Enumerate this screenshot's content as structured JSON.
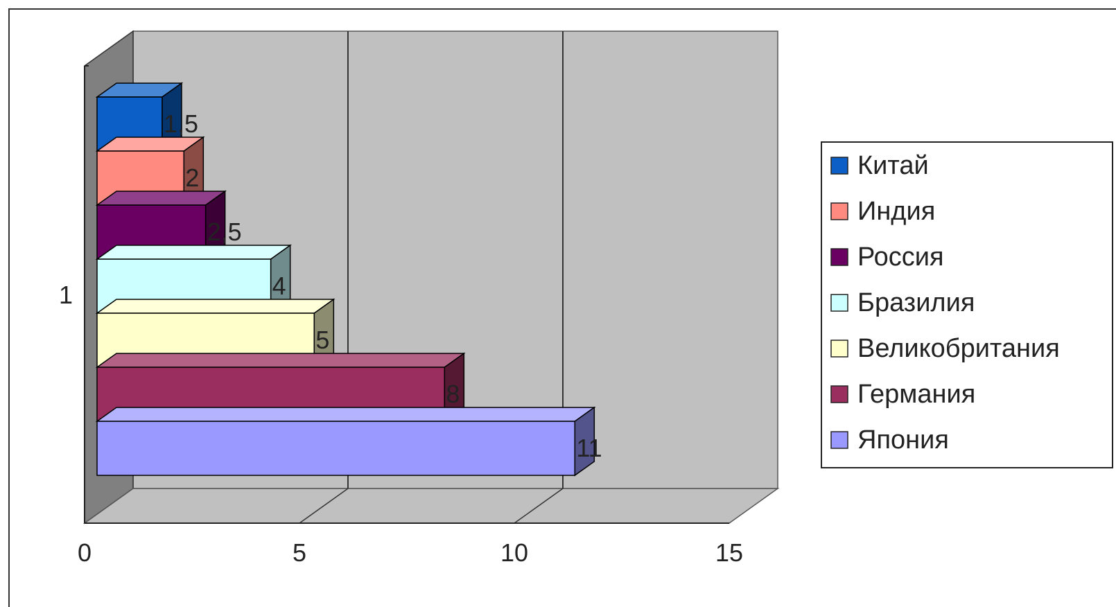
{
  "chart_data": {
    "type": "bar",
    "orientation": "horizontal",
    "three_d": true,
    "stacked": false,
    "categories": [
      "1"
    ],
    "series": [
      {
        "name": "Китай",
        "values": [
          1.5
        ],
        "label": "1,5",
        "color": "#0b5fc6"
      },
      {
        "name": "Индия",
        "values": [
          2
        ],
        "label": "2",
        "color": "#ff8a80"
      },
      {
        "name": "Россия",
        "values": [
          2.5
        ],
        "label": "2,5",
        "color": "#6b0063"
      },
      {
        "name": "Бразилия",
        "values": [
          4
        ],
        "label": "4",
        "color": "#ccffff"
      },
      {
        "name": "Великобритания",
        "values": [
          5
        ],
        "label": "5",
        "color": "#ffffcc"
      },
      {
        "name": "Германия",
        "values": [
          8
        ],
        "label": "8",
        "color": "#9a2e5e"
      },
      {
        "name": "Япония",
        "values": [
          11
        ],
        "label": "11",
        "color": "#9999ff"
      }
    ],
    "x_ticks": [
      "0",
      "5",
      "10",
      "15"
    ],
    "xlim": [
      0,
      15
    ],
    "grid": true,
    "legend_position": "right",
    "wall_color": "#c0c0c0",
    "side_wall_color": "#808080"
  }
}
